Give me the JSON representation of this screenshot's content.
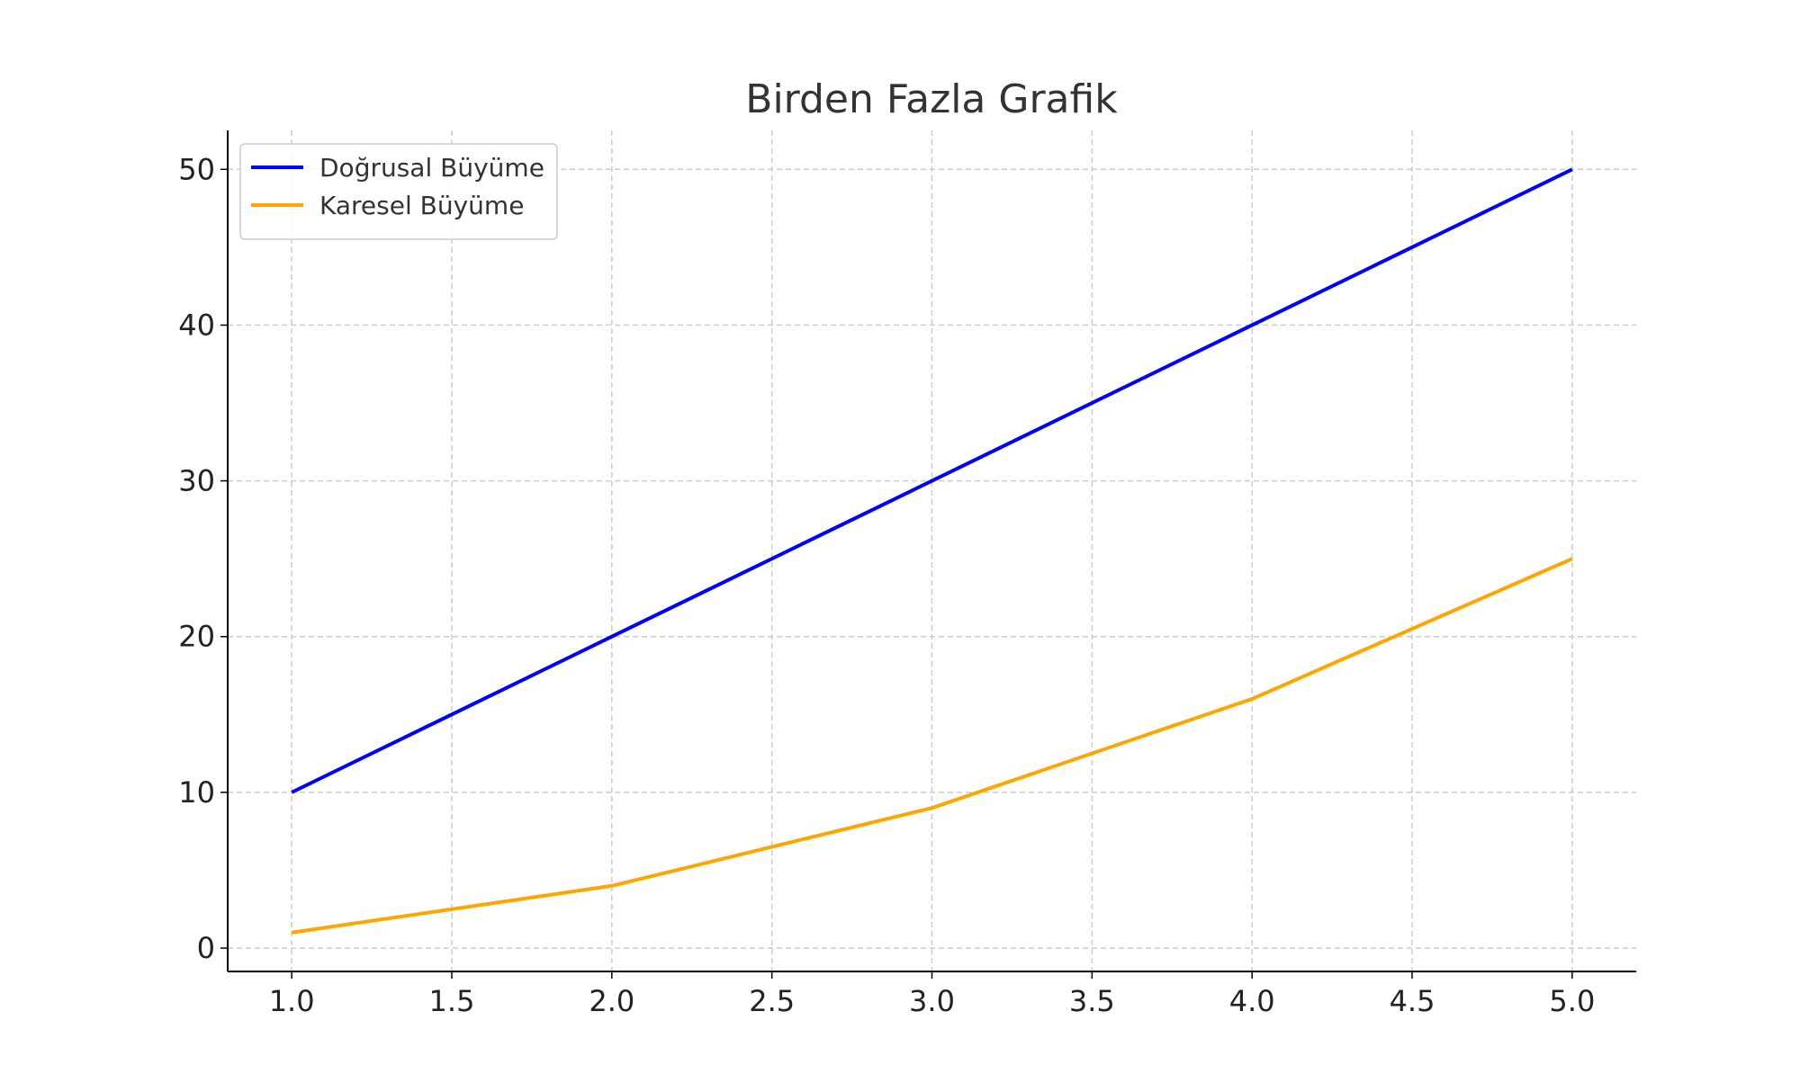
{
  "chart_data": {
    "type": "line",
    "title": "Birden Fazla Grafik",
    "xlabel": "",
    "ylabel": "",
    "x": [
      1,
      2,
      3,
      4,
      5
    ],
    "series": [
      {
        "name": "Doğrusal Büyüme",
        "color": "#0000ff",
        "values": [
          10,
          20,
          30,
          40,
          50
        ]
      },
      {
        "name": "Karesel Büyüme",
        "color": "#ffa500",
        "values": [
          1,
          4,
          9,
          16,
          25
        ]
      }
    ],
    "xlim": [
      0.8,
      5.2
    ],
    "ylim": [
      -1.5,
      52.5
    ],
    "xticks": [
      "1.0",
      "1.5",
      "2.0",
      "2.5",
      "3.0",
      "3.5",
      "4.0",
      "4.5",
      "5.0"
    ],
    "yticks": [
      "0",
      "10",
      "20",
      "30",
      "40",
      "50"
    ],
    "grid": true,
    "legend_position": "top-left",
    "colors": {
      "axis": "#000000",
      "grid": "#cccccc",
      "text": "#333333",
      "legend_border": "#cccccc"
    }
  }
}
